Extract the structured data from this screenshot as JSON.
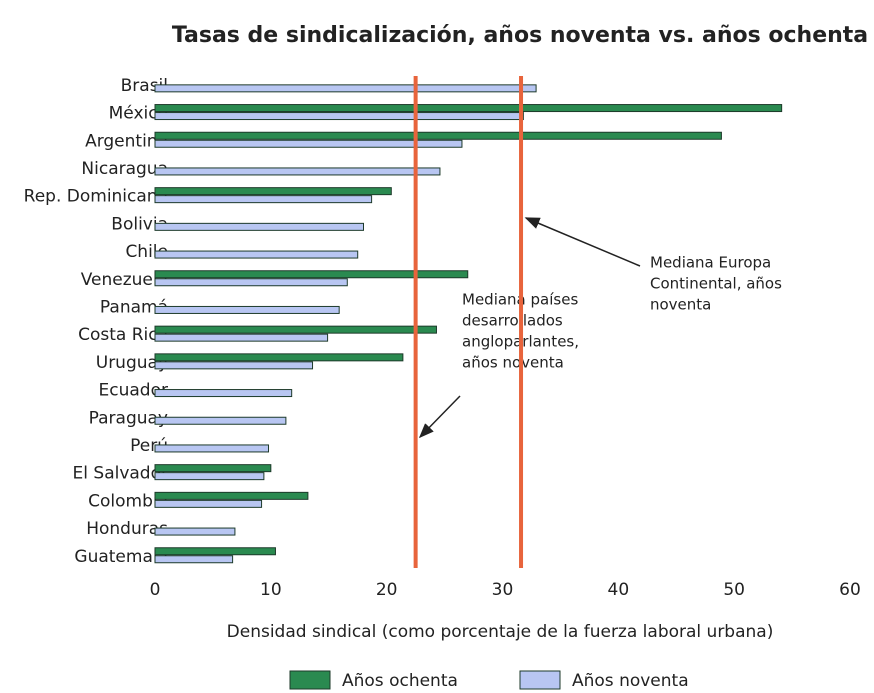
{
  "chart_data": {
    "type": "bar",
    "orientation": "horizontal",
    "title": "Tasas de sindicalización, años noventa vs. años ochenta",
    "x_label": "Densidad sindical (como porcentaje de la fuerza laboral urbana)",
    "categories": [
      "Brasil",
      "México",
      "Argentina",
      "Nicaragua",
      "Rep. Dominicana",
      "Bolivia",
      "Chile",
      "Venezuela",
      "Panamá",
      "Costa Rica",
      "Uruguay",
      "Ecuador",
      "Paraguay",
      "Perú",
      "El Salvador",
      "Colombia",
      "Honduras",
      "Guatemala"
    ],
    "series": [
      {
        "name": "Años ochenta",
        "color": "#2a8a50",
        "values": [
          null,
          54.1,
          48.9,
          null,
          20.4,
          null,
          null,
          27.0,
          null,
          24.3,
          21.4,
          null,
          null,
          null,
          10.0,
          13.2,
          null,
          10.4
        ]
      },
      {
        "name": "Años noventa",
        "color": "#b8c6f2",
        "values": [
          32.9,
          31.8,
          26.5,
          24.6,
          18.7,
          18.0,
          17.5,
          16.6,
          15.9,
          14.9,
          13.6,
          11.8,
          11.3,
          9.8,
          9.4,
          9.2,
          6.9,
          6.7
        ]
      }
    ],
    "xlim": [
      0,
      60
    ],
    "xticks": [
      0,
      10,
      20,
      30,
      40,
      50,
      60
    ],
    "reference_lines": [
      {
        "value": 22.5,
        "color": "#e8643c",
        "label": [
          "Mediana países",
          "desarrollados",
          "angloparlantes,",
          "años noventa"
        ]
      },
      {
        "value": 31.6,
        "color": "#e8643c",
        "label": [
          "Mediana Europa",
          "Continental, años",
          "noventa"
        ]
      }
    ],
    "legend": "bottom"
  }
}
